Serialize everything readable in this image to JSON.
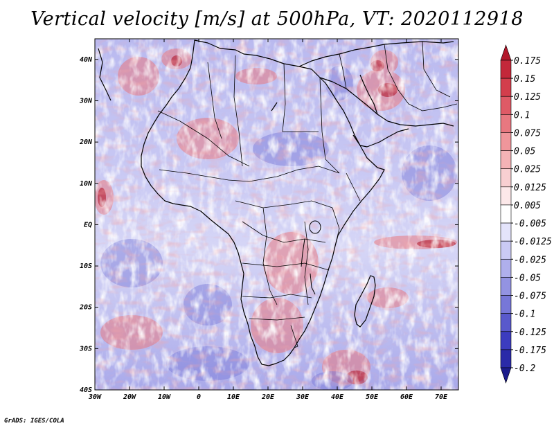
{
  "figure": {
    "title": "Vertical velocity [m/s] at 500hPa, VT: 2020112918",
    "credit": "GrADS: IGES/COLA"
  },
  "chart_data": {
    "type": "heatmap",
    "variable": "Vertical velocity",
    "units": "m/s",
    "level": "500hPa",
    "valid_time": "2020112918",
    "x_ticks": [
      "30W",
      "20W",
      "10W",
      "0",
      "10E",
      "20E",
      "30E",
      "40E",
      "50E",
      "60E",
      "70E"
    ],
    "y_ticks": [
      "40N",
      "30N",
      "20N",
      "10N",
      "EQ",
      "10S",
      "20S",
      "30S",
      "40S"
    ],
    "lon_range": [
      -30,
      75
    ],
    "lat_range": [
      -40,
      45
    ],
    "colorbar": {
      "labels": [
        "0.175",
        "0.15",
        "0.125",
        "0.1",
        "0.075",
        "0.05",
        "0.025",
        "0.0125",
        "0.005",
        "-0.005",
        "-0.0125",
        "-0.025",
        "-0.05",
        "-0.075",
        "-0.1",
        "-0.125",
        "-0.175",
        "-0.2"
      ],
      "colors": [
        "#b2182b",
        "#c3283a",
        "#d33e4c",
        "#df5a66",
        "#e87880",
        "#ef969b",
        "#f4b3b6",
        "#f8cfd1",
        "#fce8e9",
        "#ffffff",
        "#e4e4fb",
        "#cacaf4",
        "#afafec",
        "#9393e2",
        "#7777d8",
        "#5959cc",
        "#3c3cbf",
        "#2a2aa8",
        "#1c1c8c"
      ]
    }
  }
}
